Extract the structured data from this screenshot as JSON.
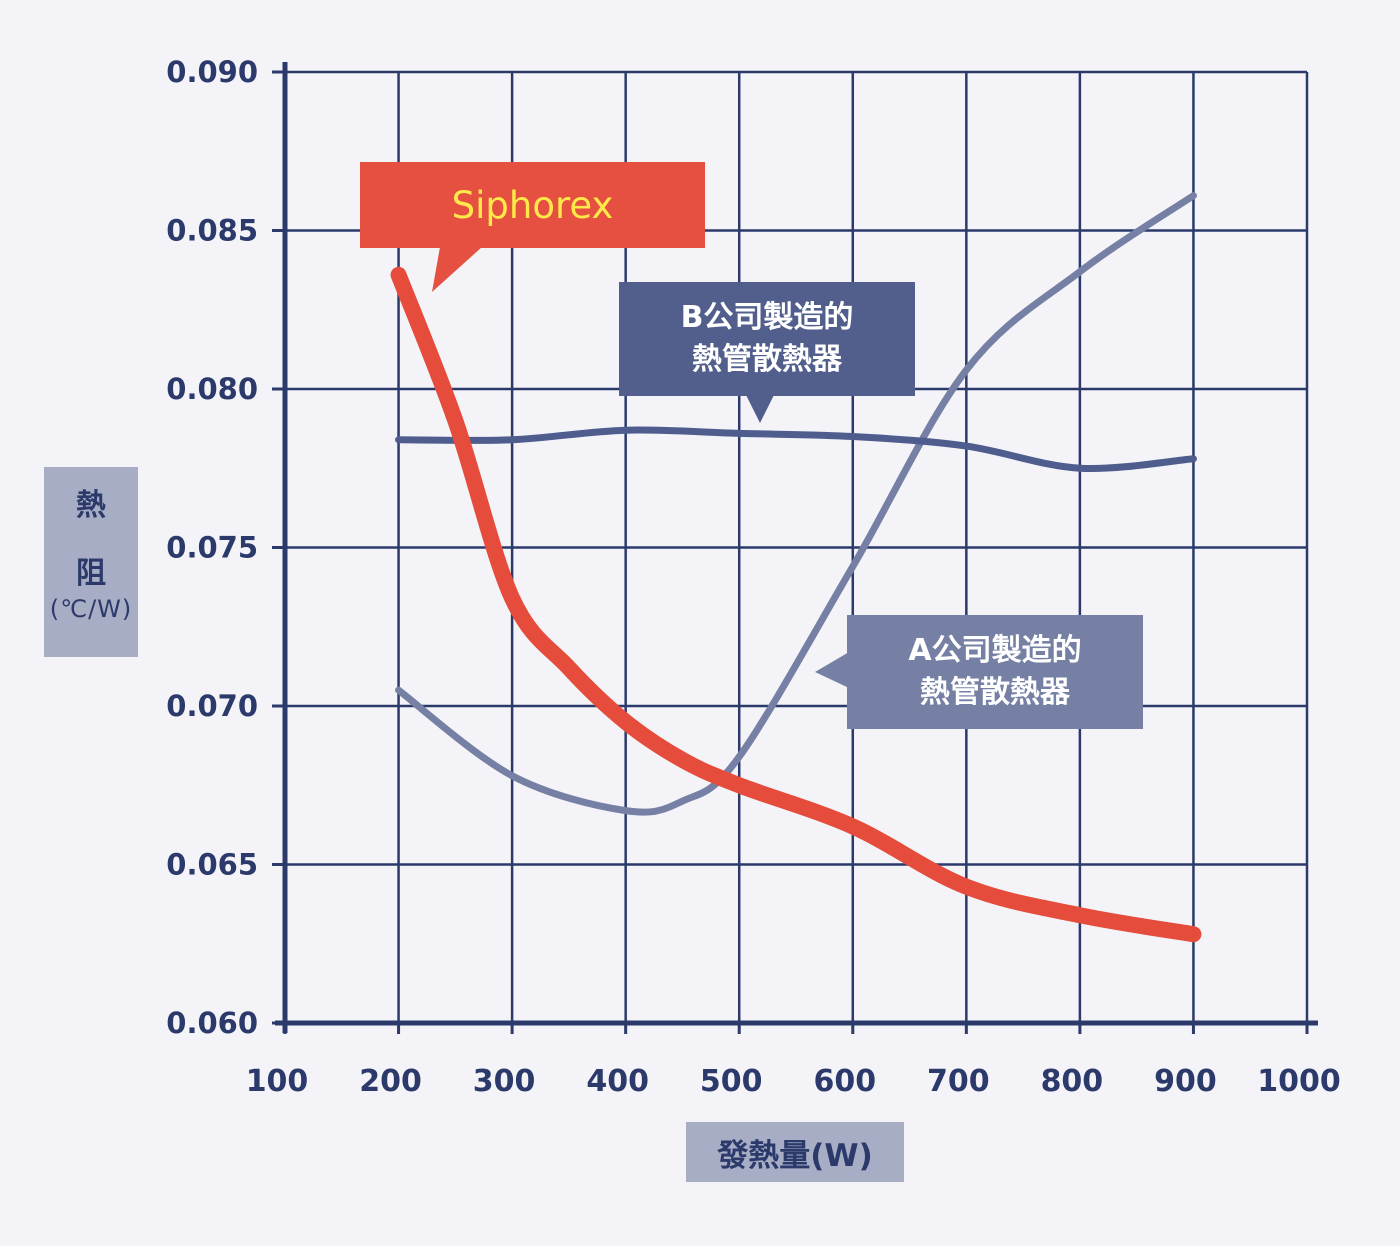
{
  "chart_data": {
    "type": "line",
    "title": "",
    "xlabel": "發熱量(W)",
    "ylabel": "熱阻(℃/W)",
    "ylabel_parts": [
      "熱",
      "阻",
      "(℃/W)"
    ],
    "xlim": [
      100,
      1000
    ],
    "ylim": [
      0.06,
      0.09
    ],
    "xticks": [
      100,
      200,
      300,
      400,
      500,
      600,
      700,
      800,
      900,
      1000
    ],
    "xtick_labels": [
      "100",
      "200",
      "300",
      "400",
      "500",
      "600",
      "700",
      "800",
      "900",
      "1000"
    ],
    "yticks": [
      0.06,
      0.065,
      0.07,
      0.075,
      0.08,
      0.085,
      0.09
    ],
    "ytick_labels": [
      "0.060",
      "0.065",
      "0.070",
      "0.075",
      "0.080",
      "0.085",
      "0.090"
    ],
    "grid": true,
    "legend": "callouts",
    "series": [
      {
        "name": "Siphorex",
        "color": "#e54c3c",
        "stroke_width": 16,
        "x": [
          200,
          250,
          300,
          350,
          400,
          450,
          500,
          600,
          700,
          800,
          900
        ],
        "values": [
          0.0836,
          0.079,
          0.0734,
          0.0712,
          0.0695,
          0.0683,
          0.0675,
          0.0662,
          0.0643,
          0.0634,
          0.0628
        ]
      },
      {
        "name": "B公司製造的熱管散熱器",
        "color": "#4f5d8e",
        "stroke_width": 7,
        "x": [
          200,
          300,
          400,
          500,
          600,
          700,
          800,
          900
        ],
        "values": [
          0.0784,
          0.0784,
          0.0787,
          0.0786,
          0.0785,
          0.0782,
          0.0775,
          0.0778
        ]
      },
      {
        "name": "A公司製造的熱管散熱器",
        "color": "#7580a4",
        "stroke_width": 7,
        "x": [
          200,
          300,
          400,
          450,
          500,
          600,
          700,
          800,
          900
        ],
        "values": [
          0.0705,
          0.0678,
          0.0667,
          0.067,
          0.0684,
          0.0744,
          0.0806,
          0.0837,
          0.0861
        ]
      }
    ],
    "annotations": [
      {
        "text": "Siphorex",
        "series": "Siphorex"
      },
      {
        "text_lines": [
          "B公司製造的",
          "熱管散熱器"
        ],
        "series": "B"
      },
      {
        "text_lines": [
          "A公司製造的",
          "熱管散熱器"
        ],
        "series": "A"
      }
    ]
  },
  "colors": {
    "background": "#f4f4f8",
    "axis": "#2b3a6b",
    "grid": "#2b3a6b",
    "label_box": "#a7adc4",
    "siphorex_callout": "#e55040",
    "siphorex_text": "#ffe84a",
    "b_callout": "#525f8c",
    "a_callout": "#7580a4"
  },
  "callouts": {
    "siphorex": "Siphorex",
    "b_line1": "B公司製造的",
    "b_line2": "熱管散熱器",
    "a_line1": "A公司製造的",
    "a_line2": "熱管散熱器"
  }
}
